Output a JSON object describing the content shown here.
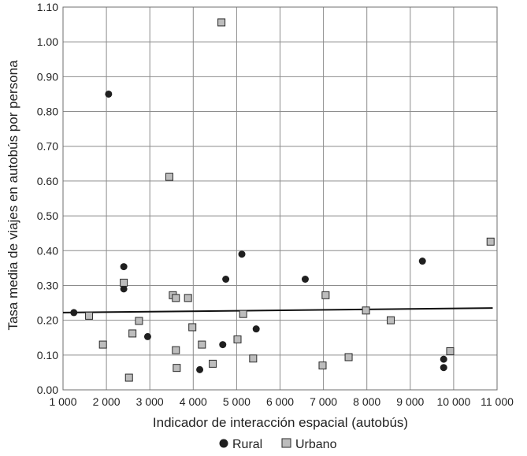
{
  "colors": {
    "rural_marker": "#1f1f1f",
    "urbano_marker_fill": "#bdbdbd",
    "urbano_marker_stroke": "#2a2a2a",
    "grid": "#8c8c8c",
    "frame": "#6f6f6f",
    "trend_line": "#111111",
    "background": "#ffffff"
  },
  "chart_data": {
    "type": "scatter",
    "xlabel": "Indicador de interacción espacial (autobús)",
    "ylabel": "Tasa media de viajes en autobús por persona",
    "xlim": [
      1000,
      11000
    ],
    "ylim": [
      0.0,
      1.1
    ],
    "x_ticks": [
      1000,
      2000,
      3000,
      4000,
      5000,
      6000,
      7000,
      8000,
      9000,
      10000,
      11000
    ],
    "x_tick_labels": [
      "1 000",
      "2 000",
      "3 000",
      "4 000",
      "5 000",
      "6 000",
      "7 000",
      "8 000",
      "9 000",
      "10 000",
      "11 000"
    ],
    "y_ticks": [
      0.0,
      0.1,
      0.2,
      0.3,
      0.4,
      0.5,
      0.6,
      0.7,
      0.8,
      0.9,
      1.0,
      1.1
    ],
    "y_tick_labels": [
      "0.00",
      "0.10",
      "0.20",
      "0.30",
      "0.40",
      "0.50",
      "0.60",
      "0.70",
      "0.80",
      "0.90",
      "1.00",
      "1.10"
    ],
    "grid": true,
    "legend_position": "bottom-center",
    "series": [
      {
        "name": "Rural",
        "marker": "circle",
        "points": [
          [
            1250,
            0.222
          ],
          [
            2050,
            0.85
          ],
          [
            2400,
            0.354
          ],
          [
            2400,
            0.29
          ],
          [
            2950,
            0.153
          ],
          [
            4150,
            0.058
          ],
          [
            4680,
            0.13
          ],
          [
            4750,
            0.318
          ],
          [
            5120,
            0.39
          ],
          [
            5450,
            0.175
          ],
          [
            6580,
            0.318
          ],
          [
            9280,
            0.37
          ],
          [
            9770,
            0.088
          ],
          [
            9770,
            0.064
          ]
        ]
      },
      {
        "name": "Urbano",
        "marker": "square",
        "points": [
          [
            1600,
            0.213
          ],
          [
            1920,
            0.13
          ],
          [
            2400,
            0.308
          ],
          [
            2520,
            0.035
          ],
          [
            2600,
            0.162
          ],
          [
            2750,
            0.198
          ],
          [
            3450,
            0.612
          ],
          [
            3530,
            0.272
          ],
          [
            3600,
            0.264
          ],
          [
            3600,
            0.114
          ],
          [
            3620,
            0.063
          ],
          [
            3880,
            0.264
          ],
          [
            3980,
            0.18
          ],
          [
            4200,
            0.13
          ],
          [
            4450,
            0.075
          ],
          [
            4650,
            1.056
          ],
          [
            5020,
            0.145
          ],
          [
            5150,
            0.218
          ],
          [
            5380,
            0.09
          ],
          [
            6980,
            0.07
          ],
          [
            7050,
            0.272
          ],
          [
            7580,
            0.094
          ],
          [
            7980,
            0.228
          ],
          [
            8550,
            0.2
          ],
          [
            9920,
            0.111
          ],
          [
            10850,
            0.426
          ]
        ]
      }
    ],
    "trend_line": {
      "x": [
        1000,
        10900
      ],
      "y": [
        0.222,
        0.235
      ]
    }
  }
}
